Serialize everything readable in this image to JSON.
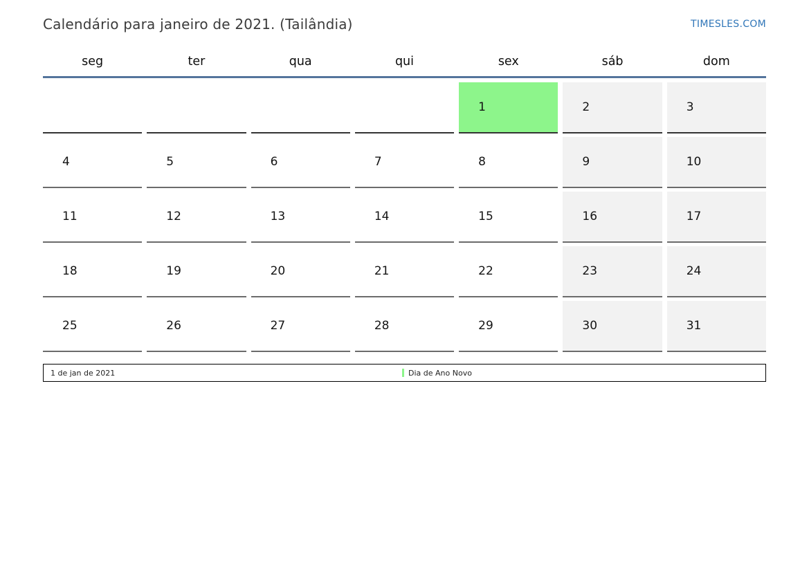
{
  "header": {
    "title": "Calendário para janeiro de 2021. (Tailândia)",
    "brand": "TIMESLES.COM"
  },
  "calendar": {
    "weekday_headers": [
      "seg",
      "ter",
      "qua",
      "qui",
      "sex",
      "sáb",
      "dom"
    ],
    "weekend_columns": [
      5,
      6
    ],
    "weeks": [
      [
        "",
        "",
        "",
        "",
        "1",
        "2",
        "3"
      ],
      [
        "4",
        "5",
        "6",
        "7",
        "8",
        "9",
        "10"
      ],
      [
        "11",
        "12",
        "13",
        "14",
        "15",
        "16",
        "17"
      ],
      [
        "18",
        "19",
        "20",
        "21",
        "22",
        "23",
        "24"
      ],
      [
        "25",
        "26",
        "27",
        "28",
        "29",
        "30",
        "31"
      ]
    ],
    "holiday_days": [
      "1"
    ]
  },
  "legend": {
    "date": "1 de jan de 2021",
    "holiday": "Dia de Ano Novo"
  },
  "colors": {
    "accent_line": "#54749c",
    "brand": "#3076b8",
    "holiday_green": "#8df58b",
    "weekend_gray": "#f2f2f2"
  }
}
